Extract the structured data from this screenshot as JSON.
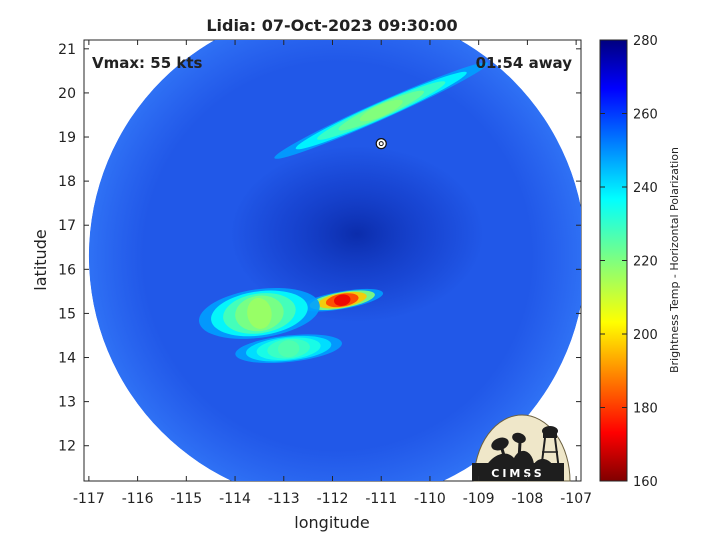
{
  "chart_data": {
    "type": "heatmap",
    "title": "Lidia: 07-Oct-2023 09:30:00",
    "annotations": {
      "vmax": "Vmax: 55 kts",
      "time_away": "01:54 away"
    },
    "xlabel": "longitude",
    "ylabel": "latitude",
    "xlim": [
      -117.1,
      -106.9
    ],
    "ylim": [
      11.2,
      21.2
    ],
    "x_ticks": [
      -117,
      -116,
      -115,
      -114,
      -113,
      -112,
      -111,
      -110,
      -109,
      -108,
      -107
    ],
    "y_ticks": [
      12,
      13,
      14,
      15,
      16,
      17,
      18,
      19,
      20,
      21
    ],
    "colorbar": {
      "label": "Brightness Temp - Horizontal Polarization",
      "range": [
        160,
        280
      ],
      "ticks": [
        160,
        180,
        200,
        220,
        240,
        260,
        280
      ],
      "colormap": "jet"
    },
    "swath": {
      "center_lon": -111.9,
      "center_lat": 16.3,
      "radius_deg": 5.1,
      "background_value": 266
    },
    "storm_center": {
      "lon": -111.0,
      "lat": 18.85
    },
    "features": [
      {
        "name": "eyewall convection",
        "lon": -111.8,
        "lat": 15.3,
        "min_value": 168
      },
      {
        "name": "southwest rainband",
        "lon": -113.5,
        "lat": 15.0,
        "min_value": 215
      },
      {
        "name": "southern rainband",
        "lon": -112.9,
        "lat": 14.2,
        "min_value": 225
      },
      {
        "name": "northern outer band",
        "lon": -111.0,
        "lat": 19.6,
        "min_value": 218
      },
      {
        "name": "cold core",
        "lon": -111.5,
        "lat": 16.8,
        "max_value": 276
      }
    ],
    "grid": false,
    "legend": "colorbar-right"
  },
  "logo": {
    "text": "CIMSS"
  },
  "colors": {
    "swath_background": "#2158e8",
    "cold_core": "#0a2aa8"
  }
}
